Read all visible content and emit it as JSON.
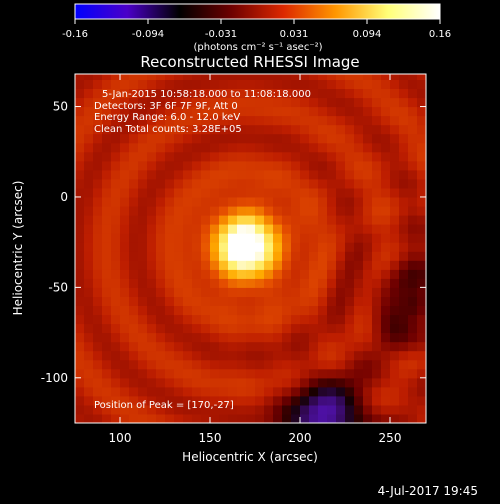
{
  "chart_data": {
    "type": "heatmap",
    "title": "Reconstructed RHESSI Image",
    "xlabel": "Heliocentric X (arcsec)",
    "ylabel": "Heliocentric Y (arcsec)",
    "xlim": [
      75,
      270
    ],
    "ylim": [
      -125,
      68
    ],
    "xticks": [
      100,
      150,
      200,
      250
    ],
    "yticks": [
      50,
      0,
      -50,
      -100
    ],
    "colorbar": {
      "range": [
        -0.16,
        0.16
      ],
      "ticks": [
        "-0.16",
        "-0.094",
        "-0.031",
        "0.031",
        "0.094",
        "0.16"
      ],
      "unit_label": "(photons cm⁻² s⁻¹ asec⁻²)",
      "colormap": [
        "#0000ff",
        "#4b00c8",
        "#000000",
        "#6e0000",
        "#dc2800",
        "#ff9600",
        "#ffff78",
        "#ffffff"
      ]
    },
    "annotations": [
      "5-Jan-2015 10:58:18.000 to 11:08:18.000",
      "Detectors: 3F 6F 7F 9F, Att 0",
      "Energy Range: 6.0 - 12.0 keV",
      "Clean    Total counts: 3.28E+05"
    ],
    "peak_label": "Position of Peak = [170,-27]",
    "peak": {
      "x": 170,
      "y": -27,
      "value": 0.16
    },
    "negative_region": {
      "x": 215,
      "y": -125,
      "value": -0.05
    },
    "grid": false
  },
  "footer": {
    "date_stamp": "4-Jul-2017 19:45"
  }
}
